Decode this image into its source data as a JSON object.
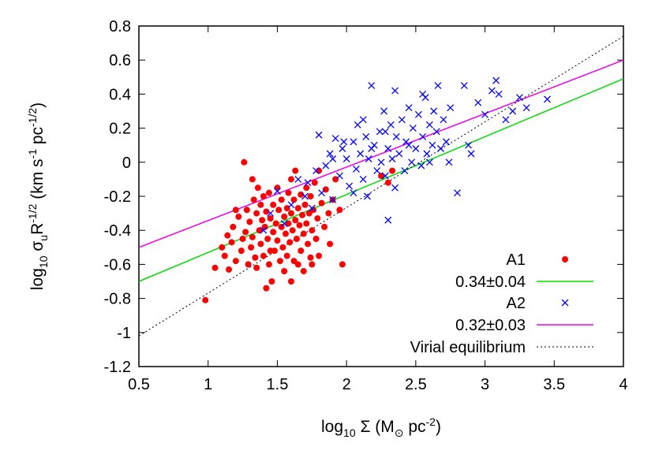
{
  "chart_data": {
    "type": "scatter",
    "title": "",
    "xlabel": {
      "prefix": "log",
      "sub": "10",
      "main": " Σ (M",
      "sun_sub": "⊙",
      "suffix": " pc",
      "sup": "-2",
      "close": ")"
    },
    "ylabel": {
      "prefix": "log",
      "sub": "10",
      "sigma": " σ",
      "u_sub": "u",
      "R": "R",
      "R_sup": "-1/2",
      "units_open": " (km s",
      "s_sup": "-1",
      "pc": " pc",
      "pc_sup": "-1/2",
      "close": ")"
    },
    "xlim": [
      0.5,
      4
    ],
    "ylim": [
      -1.2,
      0.8
    ],
    "x_ticks": [
      {
        "value": 0.5,
        "label": "0.5"
      },
      {
        "value": 1,
        "label": "1"
      },
      {
        "value": 1.5,
        "label": "1.5"
      },
      {
        "value": 2,
        "label": "2"
      },
      {
        "value": 2.5,
        "label": "2.5"
      },
      {
        "value": 3,
        "label": "3"
      },
      {
        "value": 3.5,
        "label": "3.5"
      },
      {
        "value": 4,
        "label": "4"
      }
    ],
    "y_ticks": [
      {
        "value": -1.2,
        "label": "-1.2"
      },
      {
        "value": -1,
        "label": "-1"
      },
      {
        "value": -0.8,
        "label": "-0.8"
      },
      {
        "value": -0.6,
        "label": "-0.6"
      },
      {
        "value": -0.4,
        "label": "-0.4"
      },
      {
        "value": -0.2,
        "label": "-0.2"
      },
      {
        "value": 0,
        "label": "0"
      },
      {
        "value": 0.2,
        "label": "0.2"
      },
      {
        "value": 0.4,
        "label": "0.4"
      },
      {
        "value": 0.6,
        "label": "0.6"
      },
      {
        "value": 0.8,
        "label": "0.8"
      }
    ],
    "grid": false,
    "legend_position": "bottom-right",
    "series": [
      {
        "name": "A1",
        "kind": "points",
        "marker": "circle",
        "color": "#ff0000",
        "points": [
          [
            0.98,
            -0.81
          ],
          [
            1.05,
            -0.62
          ],
          [
            1.1,
            -0.5
          ],
          [
            1.12,
            -0.55
          ],
          [
            1.14,
            -0.43
          ],
          [
            1.15,
            -0.63
          ],
          [
            1.17,
            -0.47
          ],
          [
            1.18,
            -0.38
          ],
          [
            1.2,
            -0.58
          ],
          [
            1.22,
            -0.32
          ],
          [
            1.24,
            -0.52
          ],
          [
            1.25,
            -0.45
          ],
          [
            1.26,
            0.0
          ],
          [
            1.27,
            -0.41
          ],
          [
            1.28,
            -0.28
          ],
          [
            1.29,
            -0.6
          ],
          [
            1.3,
            -0.35
          ],
          [
            1.31,
            -0.5
          ],
          [
            1.32,
            -0.1
          ],
          [
            1.32,
            -0.44
          ],
          [
            1.33,
            -0.22
          ],
          [
            1.34,
            -0.56
          ],
          [
            1.35,
            -0.3
          ],
          [
            1.35,
            -0.62
          ],
          [
            1.36,
            -0.15
          ],
          [
            1.37,
            -0.4
          ],
          [
            1.38,
            -0.25
          ],
          [
            1.38,
            -0.48
          ],
          [
            1.39,
            -0.34
          ],
          [
            1.4,
            -0.2
          ],
          [
            1.4,
            -0.55
          ],
          [
            1.41,
            -0.38
          ],
          [
            1.42,
            -0.29
          ],
          [
            1.42,
            -0.74
          ],
          [
            1.43,
            -0.45
          ],
          [
            1.44,
            -0.6
          ],
          [
            1.44,
            -0.18
          ],
          [
            1.45,
            -0.33
          ],
          [
            1.46,
            -0.7
          ],
          [
            1.47,
            -0.41
          ],
          [
            1.47,
            -0.25
          ],
          [
            1.48,
            -0.52
          ],
          [
            1.49,
            -0.36
          ],
          [
            1.5,
            -0.15
          ],
          [
            1.5,
            -0.46
          ],
          [
            1.51,
            -0.28
          ],
          [
            1.52,
            -0.58
          ],
          [
            1.53,
            -0.38
          ],
          [
            1.53,
            -0.22
          ],
          [
            1.54,
            -0.5
          ],
          [
            1.55,
            -0.32
          ],
          [
            1.55,
            -0.64
          ],
          [
            1.56,
            -0.42
          ],
          [
            1.57,
            -0.27
          ],
          [
            1.57,
            -0.55
          ],
          [
            1.58,
            -0.36
          ],
          [
            1.58,
            -0.18
          ],
          [
            1.59,
            -0.47
          ],
          [
            1.6,
            -0.3
          ],
          [
            1.6,
            -0.7
          ],
          [
            1.61,
            -0.4
          ],
          [
            1.62,
            -0.22
          ],
          [
            1.62,
            -0.58
          ],
          [
            1.63,
            -0.34
          ],
          [
            1.63,
            -0.05
          ],
          [
            1.64,
            -0.45
          ],
          [
            1.65,
            -0.27
          ],
          [
            1.65,
            -0.6
          ],
          [
            1.66,
            -0.37
          ],
          [
            1.67,
            -0.19
          ],
          [
            1.67,
            -0.52
          ],
          [
            1.68,
            -0.31
          ],
          [
            1.69,
            -0.42
          ],
          [
            1.69,
            -0.64
          ],
          [
            1.7,
            -0.25
          ],
          [
            1.71,
            -0.36
          ],
          [
            1.71,
            -0.15
          ],
          [
            1.72,
            -0.48
          ],
          [
            1.73,
            -0.3
          ],
          [
            1.74,
            -0.56
          ],
          [
            1.74,
            -0.2
          ],
          [
            1.75,
            -0.4
          ],
          [
            1.76,
            -0.28
          ],
          [
            1.77,
            -0.12
          ],
          [
            1.78,
            -0.45
          ],
          [
            1.79,
            -0.33
          ],
          [
            1.8,
            -0.05
          ],
          [
            1.8,
            -0.55
          ],
          [
            1.82,
            -0.24
          ],
          [
            1.84,
            -0.38
          ],
          [
            1.85,
            -0.16
          ],
          [
            1.87,
            -0.3
          ],
          [
            1.88,
            -0.48
          ],
          [
            1.9,
            -0.22
          ],
          [
            1.92,
            -0.1
          ],
          [
            1.95,
            -0.28
          ],
          [
            1.97,
            -0.6
          ],
          [
            2.25,
            -0.08
          ],
          [
            2.3,
            -0.12
          ],
          [
            2.33,
            -0.05
          ],
          [
            1.6,
            -0.1
          ],
          [
            1.45,
            -0.52
          ],
          [
            1.2,
            -0.28
          ],
          [
            1.75,
            -0.6
          ]
        ]
      },
      {
        "name": "0.34±0.04",
        "kind": "line",
        "color": "#00dd00",
        "dash": "solid",
        "points": [
          [
            0.5,
            -0.7
          ],
          [
            4,
            0.49
          ]
        ]
      },
      {
        "name": "A2",
        "kind": "points",
        "marker": "cross",
        "color": "#0000ff",
        "points": [
          [
            1.4,
            -0.4
          ],
          [
            1.45,
            -0.3
          ],
          [
            1.5,
            -0.17
          ],
          [
            1.55,
            -0.36
          ],
          [
            1.6,
            -0.25
          ],
          [
            1.65,
            -0.1
          ],
          [
            1.7,
            -0.2
          ],
          [
            1.72,
            -0.12
          ],
          [
            1.75,
            -0.27
          ],
          [
            1.78,
            -0.05
          ],
          [
            1.8,
            0.16
          ],
          [
            1.82,
            -0.18
          ],
          [
            1.85,
            -0.02
          ],
          [
            1.88,
            0.05
          ],
          [
            1.9,
            -0.22
          ],
          [
            1.92,
            0.14
          ],
          [
            1.95,
            -0.08
          ],
          [
            1.97,
            0.08
          ],
          [
            2.0,
            0.02
          ],
          [
            2.02,
            -0.14
          ],
          [
            2.05,
            0.12
          ],
          [
            2.07,
            -0.04
          ],
          [
            2.08,
            0.22
          ],
          [
            2.1,
            0.05
          ],
          [
            2.12,
            -0.1
          ],
          [
            2.14,
            0.15
          ],
          [
            2.15,
            -0.2
          ],
          [
            2.16,
            0.02
          ],
          [
            2.18,
            0.45
          ],
          [
            2.2,
            0.1
          ],
          [
            2.22,
            -0.05
          ],
          [
            2.24,
            0.18
          ],
          [
            2.25,
            0.0
          ],
          [
            2.27,
            0.3
          ],
          [
            2.28,
            -0.08
          ],
          [
            2.3,
            0.08
          ],
          [
            2.3,
            -0.34
          ],
          [
            2.32,
            0.22
          ],
          [
            2.33,
            0.02
          ],
          [
            2.35,
            -0.15
          ],
          [
            2.36,
            0.15
          ],
          [
            2.38,
            0.05
          ],
          [
            2.4,
            0.25
          ],
          [
            2.42,
            -0.05
          ],
          [
            2.43,
            0.12
          ],
          [
            2.45,
            0.32
          ],
          [
            2.47,
            0.0
          ],
          [
            2.48,
            0.2
          ],
          [
            2.5,
            0.08
          ],
          [
            2.52,
            0.28
          ],
          [
            2.54,
            -0.02
          ],
          [
            2.55,
            0.15
          ],
          [
            2.57,
            0.38
          ],
          [
            2.58,
            0.05
          ],
          [
            2.6,
            0.22
          ],
          [
            2.62,
            0.1
          ],
          [
            2.63,
            0.3
          ],
          [
            2.65,
            0.18
          ],
          [
            2.66,
            0.45
          ],
          [
            2.68,
            0.08
          ],
          [
            2.7,
            0.25
          ],
          [
            2.72,
            0.12
          ],
          [
            2.74,
            0.0
          ],
          [
            2.75,
            0.32
          ],
          [
            2.8,
            -0.18
          ],
          [
            2.85,
            0.45
          ],
          [
            2.88,
            0.1
          ],
          [
            2.9,
            0.05
          ],
          [
            2.95,
            0.35
          ],
          [
            3.0,
            0.28
          ],
          [
            3.05,
            0.42
          ],
          [
            3.08,
            0.48
          ],
          [
            3.1,
            0.4
          ],
          [
            3.15,
            0.25
          ],
          [
            3.2,
            0.3
          ],
          [
            3.25,
            0.38
          ],
          [
            3.3,
            0.32
          ],
          [
            3.45,
            0.37
          ],
          [
            2.35,
            0.42
          ],
          [
            2.55,
            0.4
          ],
          [
            2.28,
            0.18
          ],
          [
            2.18,
            0.08
          ],
          [
            2.12,
            0.25
          ],
          [
            2.05,
            -0.18
          ],
          [
            1.98,
            0.12
          ],
          [
            1.9,
            0.02
          ],
          [
            2.45,
            0.1
          ],
          [
            2.6,
            0.0
          ]
        ]
      },
      {
        "name": "0.32±0.03",
        "kind": "line",
        "color": "#ee00ee",
        "dash": "solid",
        "points": [
          [
            0.5,
            -0.5
          ],
          [
            4,
            0.6
          ]
        ]
      },
      {
        "name": "Virial equilibrium",
        "kind": "line",
        "color": "#000000",
        "dash": "dotted",
        "points": [
          [
            0.5,
            -1.02
          ],
          [
            4,
            0.74
          ]
        ]
      }
    ]
  }
}
